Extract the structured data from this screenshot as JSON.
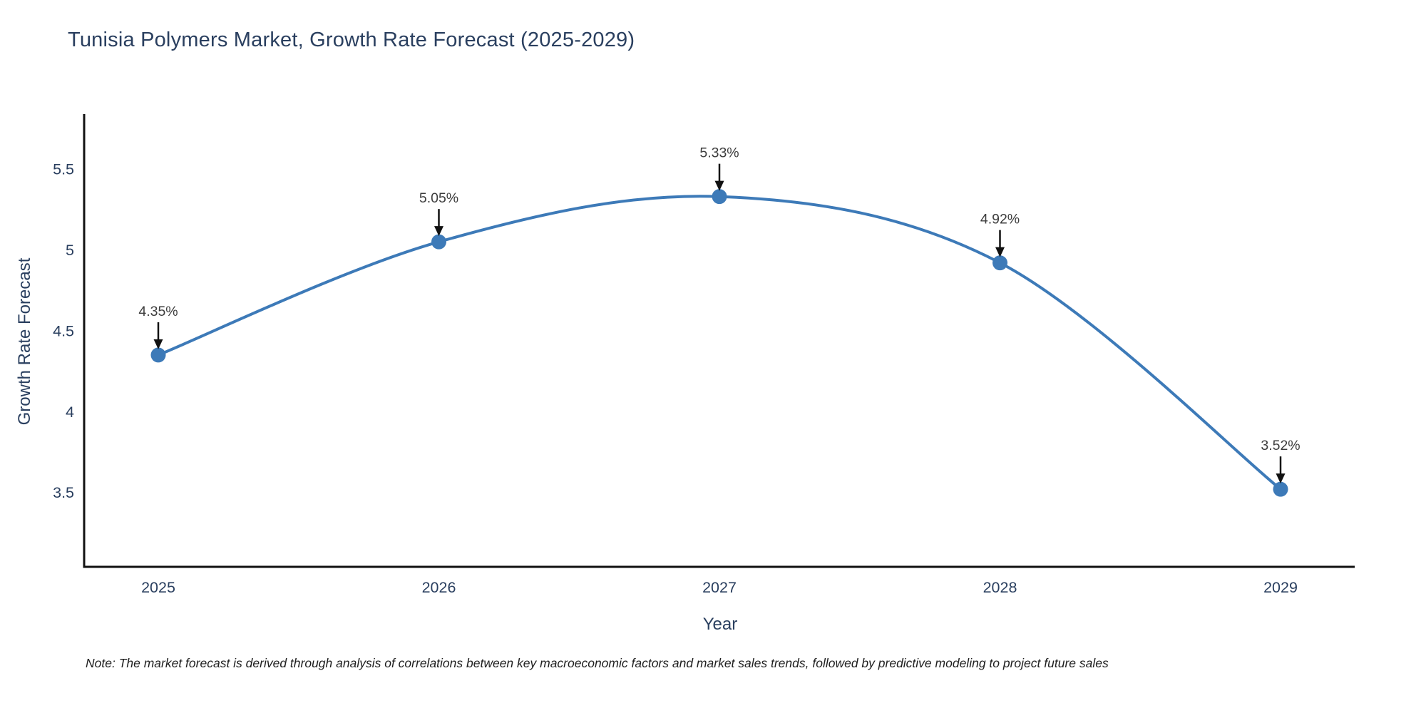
{
  "page": {
    "note": "Note: The market forecast is derived through analysis of correlations between key macroeconomic factors and market sales trends, followed by predictive modeling to project future sales"
  },
  "chart_data": {
    "type": "line",
    "title": "Tunisia Polymers Market, Growth Rate Forecast (2025-2029)",
    "categories": [
      "2025",
      "2026",
      "2027",
      "2028",
      "2029"
    ],
    "values": [
      4.35,
      5.05,
      5.33,
      4.92,
      3.52
    ],
    "point_labels": [
      "4.35%",
      "5.05%",
      "5.33%",
      "4.92%",
      "3.52%"
    ],
    "series_name": "Growth Rate Forecast",
    "xlabel": "Year",
    "ylabel": "Growth Rate Forecast",
    "yticks": [
      3.5,
      4,
      4.5,
      5,
      5.5
    ],
    "ytick_labels": [
      "3.5",
      "4",
      "4.5",
      "5",
      "5.5"
    ],
    "ylim": [
      3.04,
      5.84
    ],
    "line_shape": "spline",
    "grid": false,
    "legend_position": "none",
    "annotations_have_arrows": true,
    "colors": {
      "line": "#3d7ab8",
      "marker": "#3d7ab8",
      "axis": "#111111",
      "tick_text": "#2a3f5f",
      "title_text": "#2a3f5f",
      "annotation_text": "#3d3d3d",
      "arrow": "#111111",
      "background": "#ffffff"
    }
  }
}
